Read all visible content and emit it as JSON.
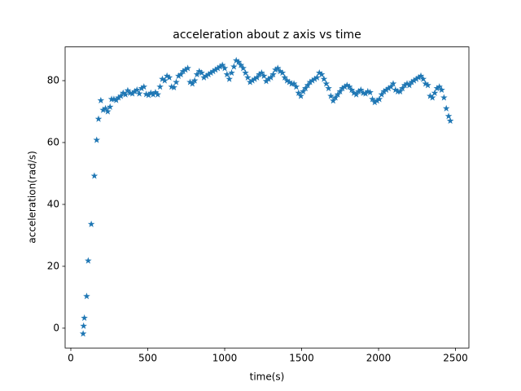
{
  "chart_data": {
    "type": "scatter",
    "title": "acceleration about z axis vs time",
    "xlabel": "time(s)",
    "ylabel": "acceleration(rad/s)",
    "marker": "*",
    "color": "#1f77b4",
    "x": [
      80,
      83,
      88,
      103,
      113,
      133,
      153,
      168,
      180,
      195,
      210,
      225,
      240,
      255,
      265,
      280,
      295,
      310,
      325,
      340,
      355,
      370,
      385,
      400,
      415,
      430,
      445,
      460,
      475,
      490,
      505,
      520,
      535,
      550,
      565,
      580,
      595,
      610,
      625,
      640,
      655,
      670,
      685,
      700,
      715,
      730,
      745,
      760,
      775,
      790,
      805,
      820,
      835,
      850,
      865,
      880,
      895,
      910,
      925,
      940,
      955,
      970,
      985,
      1000,
      1015,
      1030,
      1045,
      1060,
      1075,
      1090,
      1105,
      1120,
      1135,
      1150,
      1165,
      1180,
      1195,
      1210,
      1225,
      1240,
      1255,
      1270,
      1285,
      1300,
      1315,
      1330,
      1345,
      1360,
      1375,
      1390,
      1405,
      1420,
      1435,
      1450,
      1465,
      1480,
      1495,
      1510,
      1525,
      1540,
      1555,
      1570,
      1585,
      1600,
      1615,
      1630,
      1645,
      1660,
      1675,
      1690,
      1705,
      1720,
      1735,
      1750,
      1765,
      1780,
      1795,
      1810,
      1825,
      1840,
      1855,
      1870,
      1885,
      1900,
      1915,
      1930,
      1945,
      1960,
      1975,
      1990,
      2005,
      2020,
      2035,
      2050,
      2065,
      2080,
      2095,
      2110,
      2125,
      2140,
      2155,
      2170,
      2185,
      2200,
      2215,
      2230,
      2245,
      2260,
      2275,
      2290,
      2305,
      2320,
      2335,
      2350,
      2365,
      2380,
      2395,
      2410,
      2425,
      2440,
      2455,
      2466
    ],
    "values": [
      -1.8,
      0.7,
      3.3,
      10.3,
      21.8,
      33.6,
      49.2,
      60.8,
      67.6,
      73.6,
      70.5,
      71,
      70,
      71.5,
      74,
      74,
      73.7,
      74.5,
      75,
      76,
      75.5,
      76.8,
      76,
      75.8,
      76.5,
      77,
      75.8,
      77.5,
      78,
      75.6,
      75.3,
      76,
      75.5,
      76.2,
      75.5,
      78,
      80.5,
      80,
      81.5,
      81,
      78,
      77.8,
      79.5,
      81.5,
      82,
      83,
      83.5,
      84,
      79.5,
      79,
      80,
      82,
      83,
      82.5,
      81,
      81.5,
      82,
      82.5,
      83,
      83.5,
      84,
      84.5,
      85,
      84,
      82,
      80.5,
      82.5,
      84.5,
      86.5,
      86,
      85,
      84,
      82.5,
      81,
      79.5,
      80,
      80.5,
      81,
      82,
      82.5,
      81.5,
      79.8,
      80.5,
      81,
      82,
      83.5,
      84,
      83,
      82.5,
      81,
      80,
      79.5,
      79,
      79,
      78,
      76,
      75,
      76.5,
      77.5,
      78.5,
      79.5,
      80,
      80.5,
      81,
      82.5,
      82,
      80.5,
      79,
      77.5,
      75,
      73.5,
      74.5,
      75.5,
      76.5,
      77.5,
      78,
      78.5,
      78,
      77,
      76,
      75.5,
      76.5,
      77,
      76,
      75.8,
      76.5,
      76.2,
      74,
      73,
      73.5,
      74,
      75.5,
      76.5,
      77,
      77.5,
      78,
      79,
      77,
      76.5,
      76.5,
      77.5,
      78.5,
      79,
      78.5,
      79.5,
      80,
      80.5,
      81,
      81.5,
      80.5,
      79,
      78.5,
      75,
      74.5,
      76,
      77.5,
      78,
      77,
      74.5,
      71,
      68.5,
      67
    ],
    "xlim": [
      -37,
      2587
    ],
    "ylim": [
      -6.4,
      90.9
    ],
    "xticks": [
      0,
      500,
      1000,
      1500,
      2000,
      2500
    ],
    "yticks": [
      0,
      20,
      40,
      60,
      80
    ]
  }
}
